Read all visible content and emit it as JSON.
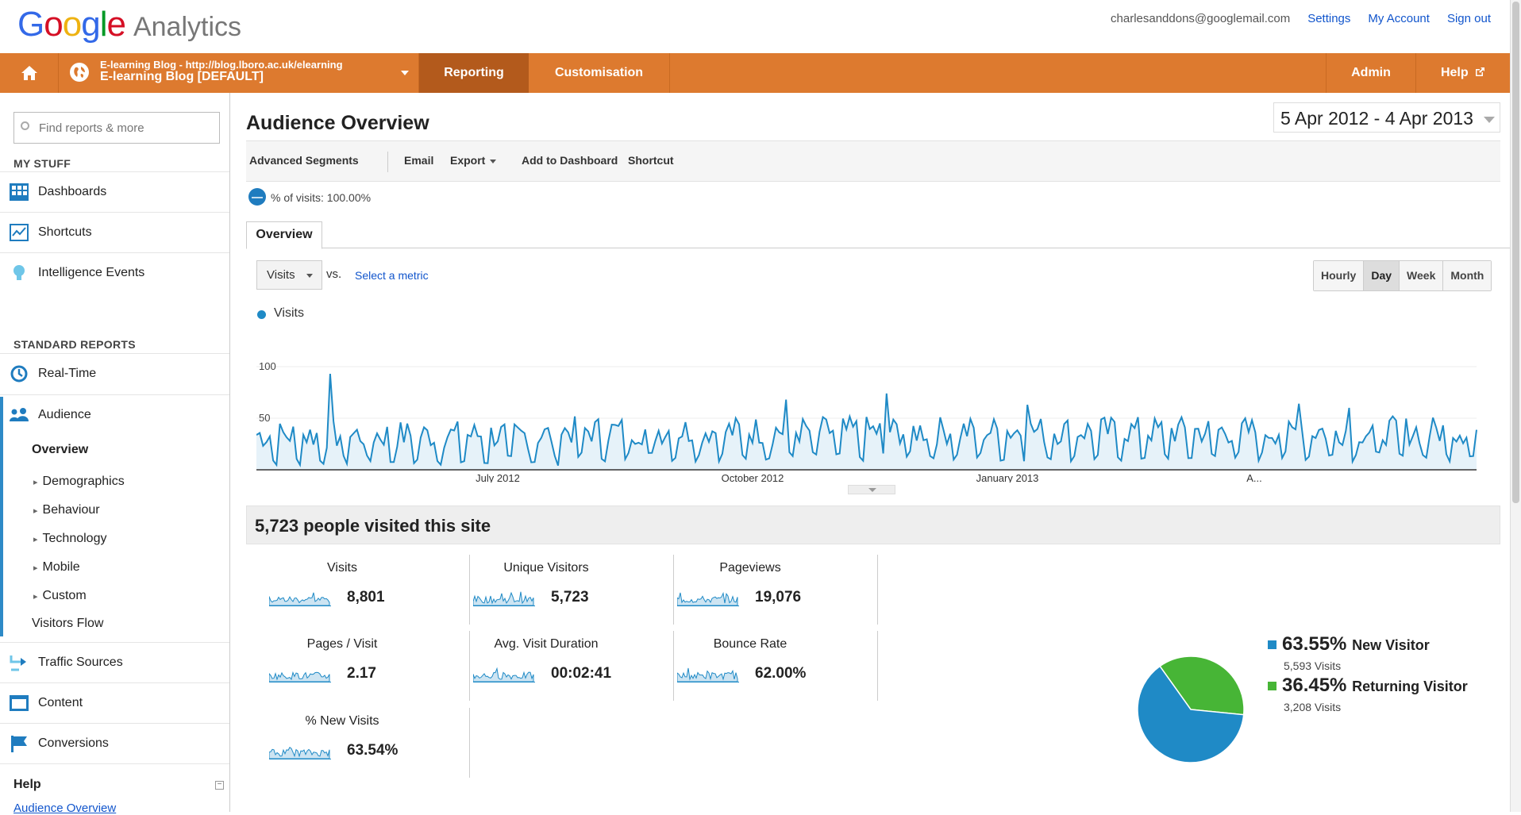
{
  "header": {
    "logo_google": "Google",
    "logo_product": "Analytics",
    "email": "charlesanddons@googlemail.com",
    "links": [
      "Settings",
      "My Account",
      "Sign out"
    ]
  },
  "navbar": {
    "account_line1": "E-learning Blog - http://blog.lboro.ac.uk/elearning",
    "account_line2": "E-learning Blog [DEFAULT]",
    "tabs": {
      "reporting": "Reporting",
      "customisation": "Customisation",
      "admin": "Admin",
      "help": "Help"
    }
  },
  "sidebar": {
    "search_placeholder": "Find reports & more",
    "my_stuff": "MY STUFF",
    "my_items": [
      "Dashboards",
      "Shortcuts",
      "Intelligence Events"
    ],
    "standard_reports": "STANDARD REPORTS",
    "realtime": "Real-Time",
    "audience": "Audience",
    "audience_sub": [
      "Overview",
      "Demographics",
      "Behaviour",
      "Technology",
      "Mobile",
      "Custom",
      "Visitors Flow"
    ],
    "other_items": [
      "Traffic Sources",
      "Content",
      "Conversions"
    ],
    "help_title": "Help",
    "help_link": "Audience Overview"
  },
  "main": {
    "title": "Audience Overview",
    "date_range": "5 Apr 2012 - 4 Apr 2013",
    "toolbar": [
      "Advanced Segments",
      "Email",
      "Export",
      "Add to Dashboard",
      "Shortcut"
    ],
    "segment_label": "% of visits: 100.00%",
    "tab_overview": "Overview",
    "metric_selected": "Visits",
    "vs_label": "vs.",
    "select_metric": "Select a metric",
    "granularity": [
      "Hourly",
      "Day",
      "Week",
      "Month"
    ],
    "granularity_active": "Day",
    "legend_series": "Visits",
    "summary_title": "5,723 people visited this site"
  },
  "chart_data": {
    "type": "area",
    "series": [
      {
        "name": "Visits",
        "color": "#1f8ac6"
      }
    ],
    "y_ticks": [
      100,
      50
    ],
    "ylim": [
      0,
      100
    ],
    "x_labels": [
      "July 2012",
      "October 2012",
      "January 2013",
      "A..."
    ],
    "x_range": [
      "2012-04-05",
      "2013-04-04"
    ],
    "grid": true
  },
  "metrics": [
    {
      "label": "Visits",
      "value": "8,801"
    },
    {
      "label": "Unique Visitors",
      "value": "5,723"
    },
    {
      "label": "Pageviews",
      "value": "19,076"
    },
    {
      "label": "Pages / Visit",
      "value": "2.17"
    },
    {
      "label": "Avg. Visit Duration",
      "value": "00:02:41"
    },
    {
      "label": "Bounce Rate",
      "value": "62.00%"
    },
    {
      "label": "% New Visits",
      "value": "63.54%"
    }
  ],
  "visitor_pie": [
    {
      "percent": "63.55%",
      "name": "New Visitor",
      "count": "5,593 Visits",
      "fraction": 0.6355,
      "color": "#1f8ac6"
    },
    {
      "percent": "36.45%",
      "name": "Returning Visitor",
      "count": "3,208 Visits",
      "fraction": 0.3645,
      "color": "#47b536"
    }
  ]
}
